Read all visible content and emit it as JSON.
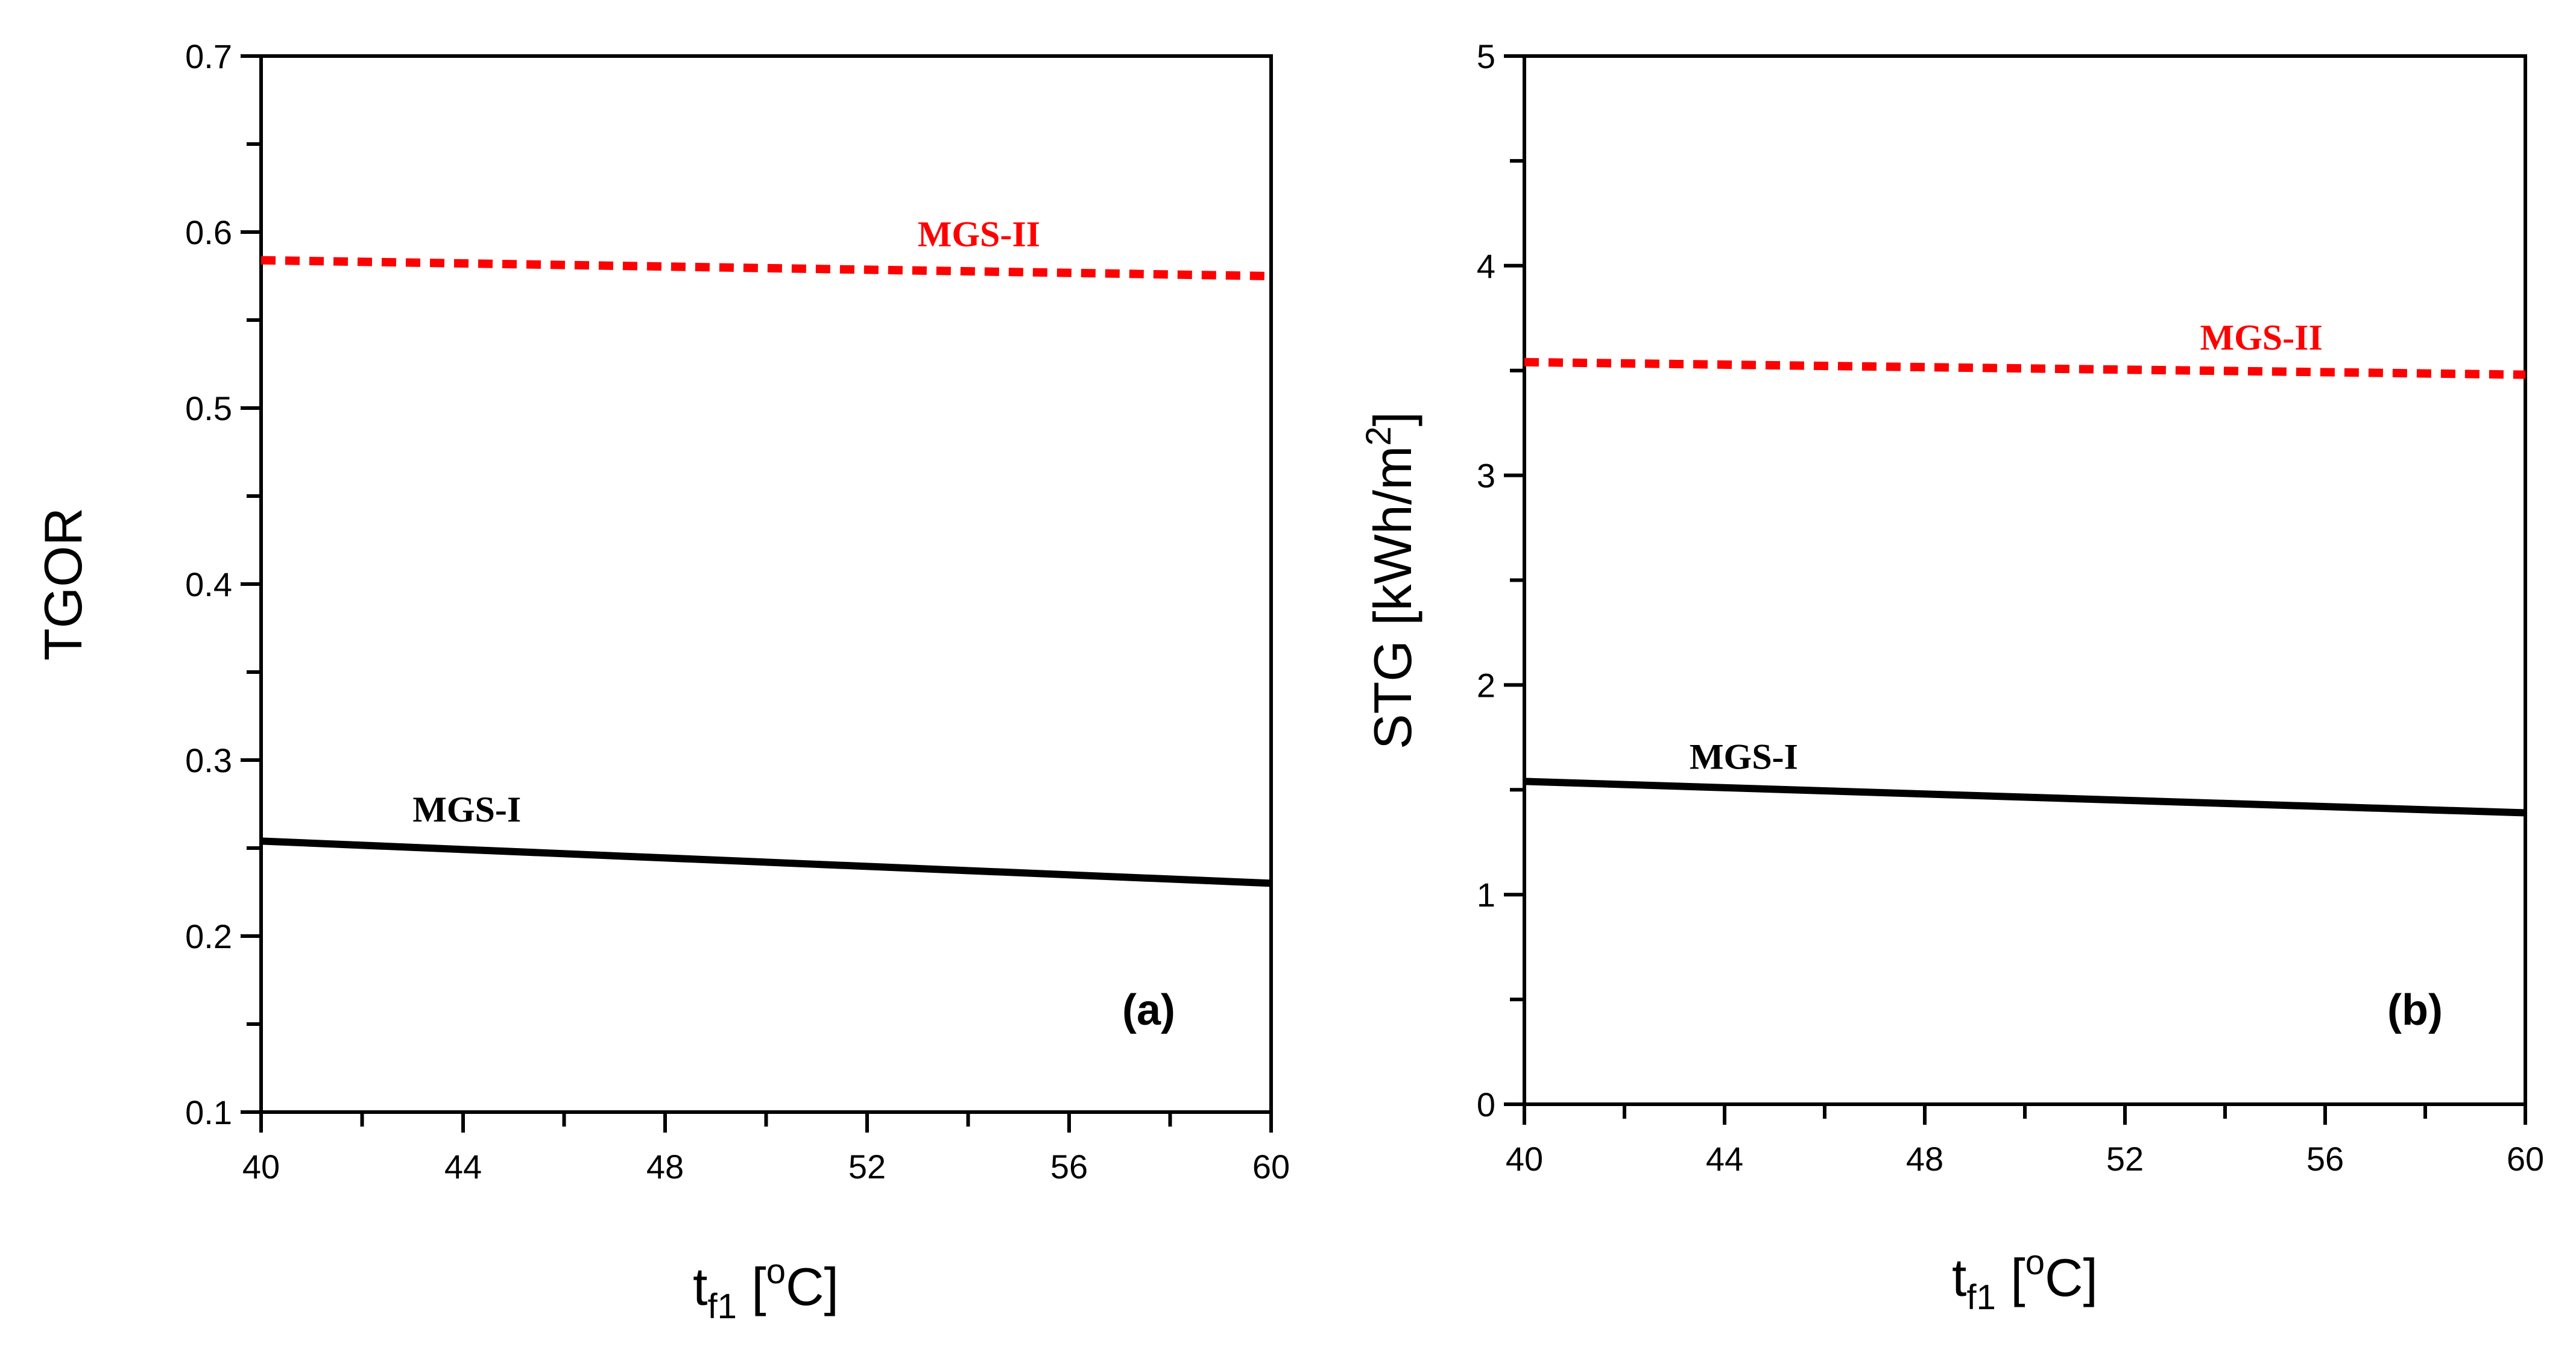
{
  "chart_data": [
    {
      "type": "line",
      "panel": "(a)",
      "xlabel": {
        "main": "t",
        "sub": "f1",
        "unit_open": " [",
        "sup": "o",
        "unit_close": "C]"
      },
      "ylabel": "TGOR",
      "xlim": [
        40,
        60
      ],
      "ylim": [
        0.1,
        0.7
      ],
      "x_ticks": [
        40,
        44,
        48,
        52,
        56,
        60
      ],
      "x_tick_labels": [
        "40",
        "44",
        "48",
        "52",
        "56",
        "60"
      ],
      "x_minor_step": 2,
      "y_ticks": [
        0.1,
        0.2,
        0.3,
        0.4,
        0.5,
        0.6,
        0.7
      ],
      "y_tick_labels": [
        "0.1",
        "0.2",
        "0.3",
        "0.4",
        "0.5",
        "0.6",
        "0.7"
      ],
      "y_minor_step": 0.05,
      "series": [
        {
          "name": "MGS-I",
          "style": "solid",
          "color": "#000000",
          "x": [
            40,
            60
          ],
          "y": [
            0.254,
            0.23
          ],
          "label_at": [
            43,
            0.265
          ]
        },
        {
          "name": "MGS-II",
          "style": "dashed",
          "color": "#ff0000",
          "x": [
            40,
            60
          ],
          "y": [
            0.584,
            0.575
          ],
          "label_at": [
            53,
            0.592
          ]
        }
      ]
    },
    {
      "type": "line",
      "panel": "(b)",
      "xlabel": {
        "main": "t",
        "sub": "f1",
        "unit_open": " [",
        "sup": "o",
        "unit_close": "C]"
      },
      "ylabel": {
        "main": "STG [kWh/m",
        "sup": "2",
        "close": "]"
      },
      "xlim": [
        40,
        60
      ],
      "ylim": [
        0,
        5
      ],
      "x_ticks": [
        40,
        44,
        48,
        52,
        56,
        60
      ],
      "x_tick_labels": [
        "40",
        "44",
        "48",
        "52",
        "56",
        "60"
      ],
      "x_minor_step": 2,
      "y_ticks": [
        0,
        1,
        2,
        3,
        4,
        5
      ],
      "y_tick_labels": [
        "0",
        "1",
        "2",
        "3",
        "4",
        "5"
      ],
      "y_minor_step": 0.5,
      "series": [
        {
          "name": "MGS-I",
          "style": "solid",
          "color": "#000000",
          "x": [
            40,
            60
          ],
          "y": [
            1.54,
            1.39
          ],
          "label_at": [
            43.3,
            1.6
          ]
        },
        {
          "name": "MGS-II",
          "style": "dashed",
          "color": "#ff0000",
          "x": [
            40,
            60
          ],
          "y": [
            3.54,
            3.48
          ],
          "label_at": [
            53.5,
            3.6
          ]
        }
      ]
    }
  ]
}
